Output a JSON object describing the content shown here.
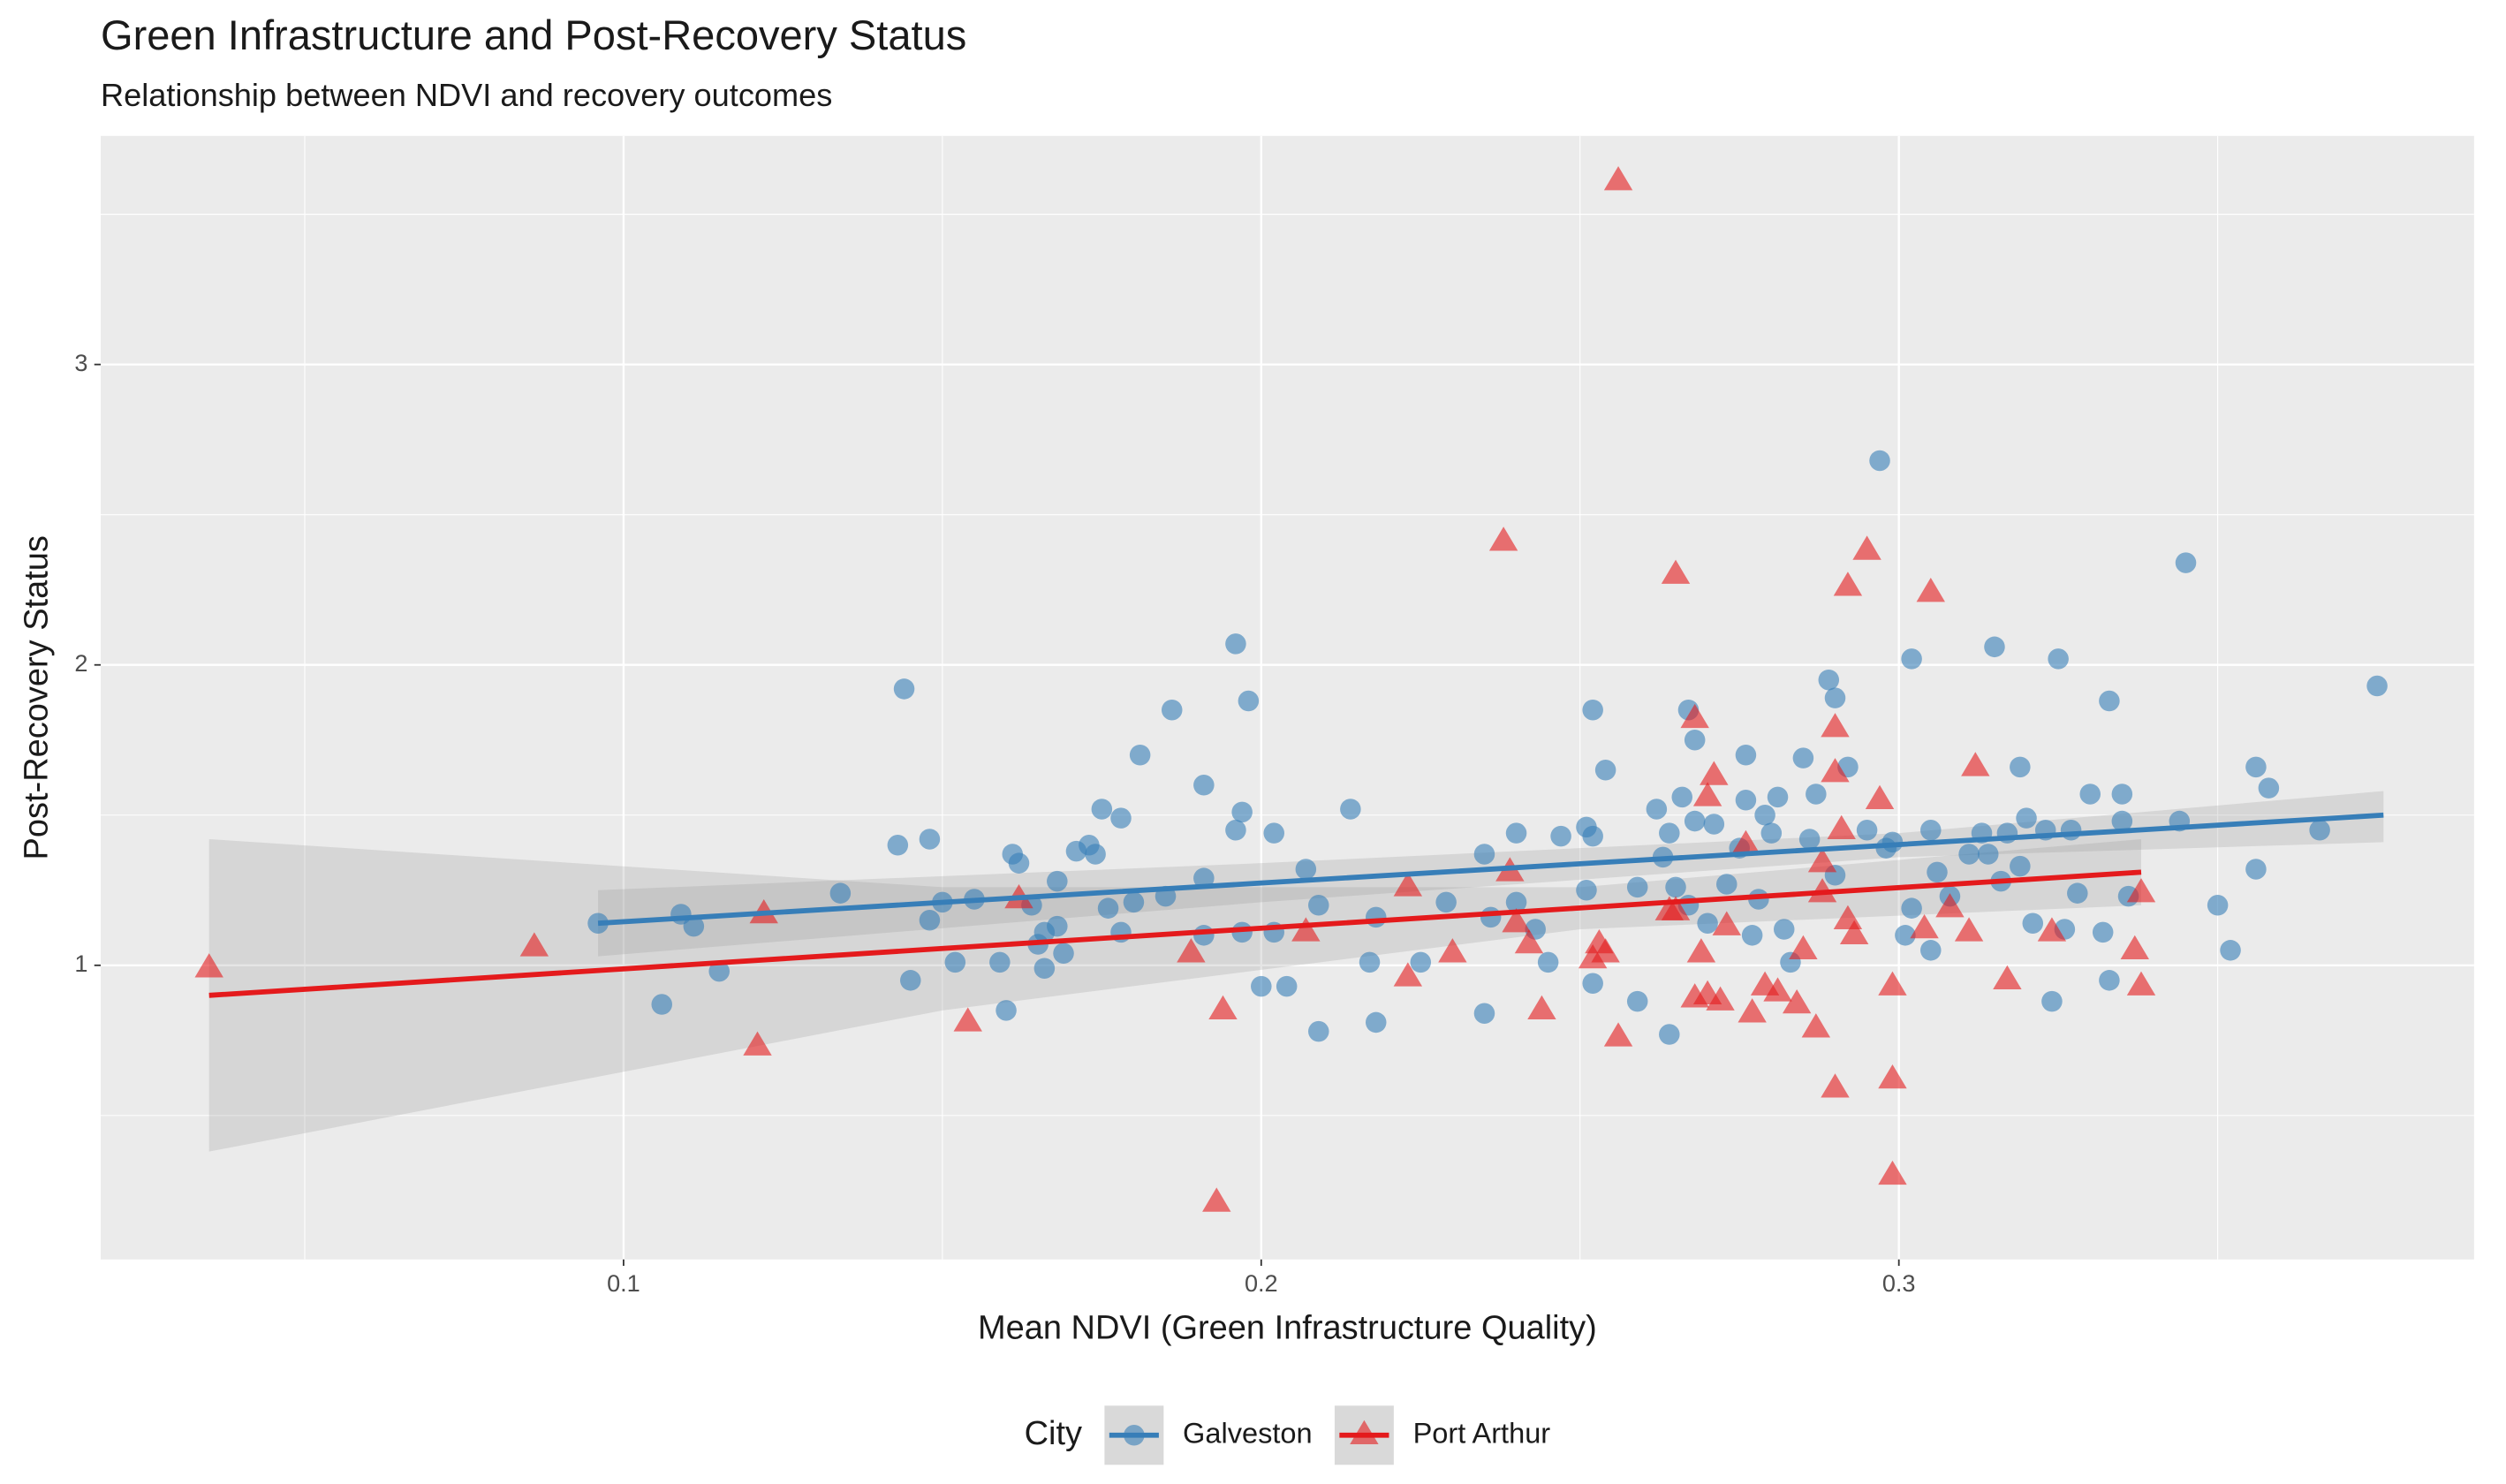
{
  "chart_data": {
    "type": "scatter",
    "title": "Green Infrastructure and Post-Recovery Status",
    "subtitle": "Relationship between NDVI and recovery outcomes",
    "x_label": "Mean NDVI (Green Infrastructure Quality)",
    "y_label": "Post-Recovery Status",
    "xlim": [
      0.018,
      0.3902
    ],
    "ylim": [
      0.021,
      3.761
    ],
    "xticks": [
      0.1,
      0.2,
      0.3
    ],
    "yticks": [
      1,
      2,
      3
    ],
    "grid": true,
    "legend_title": "City",
    "legend_position": "bottom",
    "series": [
      {
        "name": "Galveston",
        "color": "#377eb8",
        "marker": "circle",
        "x": [
          0.096,
          0.109,
          0.111,
          0.106,
          0.115,
          0.134,
          0.143,
          0.144,
          0.148,
          0.145,
          0.148,
          0.15,
          0.152,
          0.155,
          0.159,
          0.16,
          0.161,
          0.162,
          0.164,
          0.165,
          0.166,
          0.166,
          0.168,
          0.168,
          0.169,
          0.171,
          0.173,
          0.174,
          0.175,
          0.176,
          0.178,
          0.178,
          0.18,
          0.181,
          0.186,
          0.185,
          0.191,
          0.191,
          0.191,
          0.196,
          0.196,
          0.197,
          0.197,
          0.198,
          0.2,
          0.202,
          0.202,
          0.204,
          0.207,
          0.209,
          0.209,
          0.214,
          0.217,
          0.218,
          0.218,
          0.225,
          0.229,
          0.235,
          0.235,
          0.236,
          0.24,
          0.24,
          0.243,
          0.245,
          0.247,
          0.251,
          0.252,
          0.251,
          0.252,
          0.252,
          0.254,
          0.259,
          0.259,
          0.262,
          0.263,
          0.264,
          0.264,
          0.265,
          0.266,
          0.267,
          0.268,
          0.267,
          0.268,
          0.27,
          0.271,
          0.273,
          0.275,
          0.276,
          0.276,
          0.277,
          0.278,
          0.279,
          0.28,
          0.281,
          0.282,
          0.283,
          0.285,
          0.286,
          0.287,
          0.289,
          0.29,
          0.29,
          0.292,
          0.295,
          0.297,
          0.298,
          0.299,
          0.301,
          0.302,
          0.302,
          0.305,
          0.305,
          0.306,
          0.308,
          0.311,
          0.313,
          0.314,
          0.315,
          0.316,
          0.317,
          0.319,
          0.319,
          0.32,
          0.321,
          0.323,
          0.324,
          0.325,
          0.326,
          0.327,
          0.328,
          0.33,
          0.332,
          0.333,
          0.333,
          0.335,
          0.335,
          0.336,
          0.345,
          0.344,
          0.35,
          0.352,
          0.356,
          0.356,
          0.358,
          0.366,
          0.375
        ],
        "values": [
          1.14,
          1.17,
          1.13,
          0.87,
          0.98,
          1.24,
          1.4,
          1.92,
          1.42,
          0.95,
          1.15,
          1.21,
          1.01,
          1.22,
          1.01,
          0.85,
          1.37,
          1.34,
          1.2,
          1.07,
          1.11,
          0.99,
          1.13,
          1.28,
          1.04,
          1.38,
          1.4,
          1.37,
          1.52,
          1.19,
          1.49,
          1.11,
          1.21,
          1.7,
          1.85,
          1.23,
          1.1,
          1.6,
          1.29,
          2.07,
          1.45,
          1.51,
          1.11,
          1.88,
          0.93,
          1.44,
          1.11,
          0.93,
          1.32,
          1.2,
          0.78,
          1.52,
          1.01,
          1.16,
          0.81,
          1.01,
          1.21,
          1.37,
          0.84,
          1.16,
          1.44,
          1.21,
          1.12,
          1.01,
          1.43,
          1.46,
          1.43,
          1.25,
          0.94,
          1.85,
          1.65,
          1.26,
          0.88,
          1.52,
          1.36,
          1.44,
          0.77,
          1.26,
          1.56,
          1.2,
          1.48,
          1.85,
          1.75,
          1.14,
          1.47,
          1.27,
          1.39,
          1.7,
          1.55,
          1.1,
          1.22,
          1.5,
          1.44,
          1.56,
          1.12,
          1.01,
          1.69,
          1.42,
          1.57,
          1.95,
          1.89,
          1.3,
          1.66,
          1.45,
          2.68,
          1.39,
          1.41,
          1.1,
          2.02,
          1.19,
          1.45,
          1.05,
          1.31,
          1.23,
          1.37,
          1.44,
          1.37,
          2.06,
          1.28,
          1.44,
          1.66,
          1.33,
          1.49,
          1.14,
          1.45,
          0.88,
          2.02,
          1.12,
          1.45,
          1.24,
          1.57,
          1.11,
          0.95,
          1.88,
          1.48,
          1.57,
          1.23,
          2.34,
          1.48,
          1.2,
          1.05,
          1.32,
          1.66,
          1.59,
          1.45,
          1.93
        ],
        "fit": {
          "x": [
            0.096,
            0.2,
            0.3,
            0.376
          ],
          "values": [
            1.14,
            1.274,
            1.402,
            1.5
          ],
          "lower": [
            1.03,
            1.21,
            1.36,
            1.41
          ],
          "upper": [
            1.25,
            1.34,
            1.44,
            1.58
          ]
        }
      },
      {
        "name": "Port Arthur",
        "color": "#e41a1c",
        "marker": "triangle",
        "x": [
          0.035,
          0.086,
          0.121,
          0.122,
          0.154,
          0.162,
          0.189,
          0.193,
          0.194,
          0.207,
          0.223,
          0.223,
          0.23,
          0.238,
          0.239,
          0.24,
          0.242,
          0.244,
          0.252,
          0.253,
          0.254,
          0.256,
          0.256,
          0.264,
          0.265,
          0.265,
          0.268,
          0.268,
          0.269,
          0.27,
          0.27,
          0.271,
          0.272,
          0.273,
          0.276,
          0.277,
          0.279,
          0.281,
          0.284,
          0.285,
          0.287,
          0.288,
          0.288,
          0.29,
          0.29,
          0.29,
          0.291,
          0.292,
          0.292,
          0.293,
          0.295,
          0.297,
          0.299,
          0.299,
          0.299,
          0.304,
          0.305,
          0.308,
          0.311,
          0.312,
          0.317,
          0.324,
          0.337,
          0.338,
          0.338
        ],
        "values": [
          0.99,
          1.06,
          0.73,
          1.17,
          0.81,
          1.22,
          1.04,
          0.21,
          0.85,
          1.11,
          1.26,
          0.96,
          1.04,
          2.41,
          1.31,
          1.14,
          1.07,
          0.85,
          1.02,
          1.07,
          1.04,
          0.76,
          3.61,
          1.18,
          2.3,
          1.18,
          1.82,
          0.89,
          1.04,
          0.9,
          1.56,
          1.63,
          0.88,
          1.13,
          1.4,
          0.84,
          0.93,
          0.91,
          0.87,
          1.05,
          0.79,
          1.34,
          1.24,
          1.79,
          0.59,
          1.64,
          1.45,
          2.26,
          1.15,
          1.1,
          2.38,
          1.55,
          0.93,
          0.62,
          0.3,
          1.12,
          2.24,
          1.19,
          1.11,
          1.66,
          0.95,
          1.11,
          1.05,
          0.93,
          1.24
        ],
        "fit": {
          "x": [
            0.035,
            0.15,
            0.25,
            0.338
          ],
          "values": [
            0.9,
            1.056,
            1.191,
            1.31
          ],
          "lower": [
            0.38,
            0.85,
            1.12,
            1.2
          ],
          "upper": [
            1.42,
            1.26,
            1.26,
            1.42
          ]
        }
      }
    ]
  }
}
